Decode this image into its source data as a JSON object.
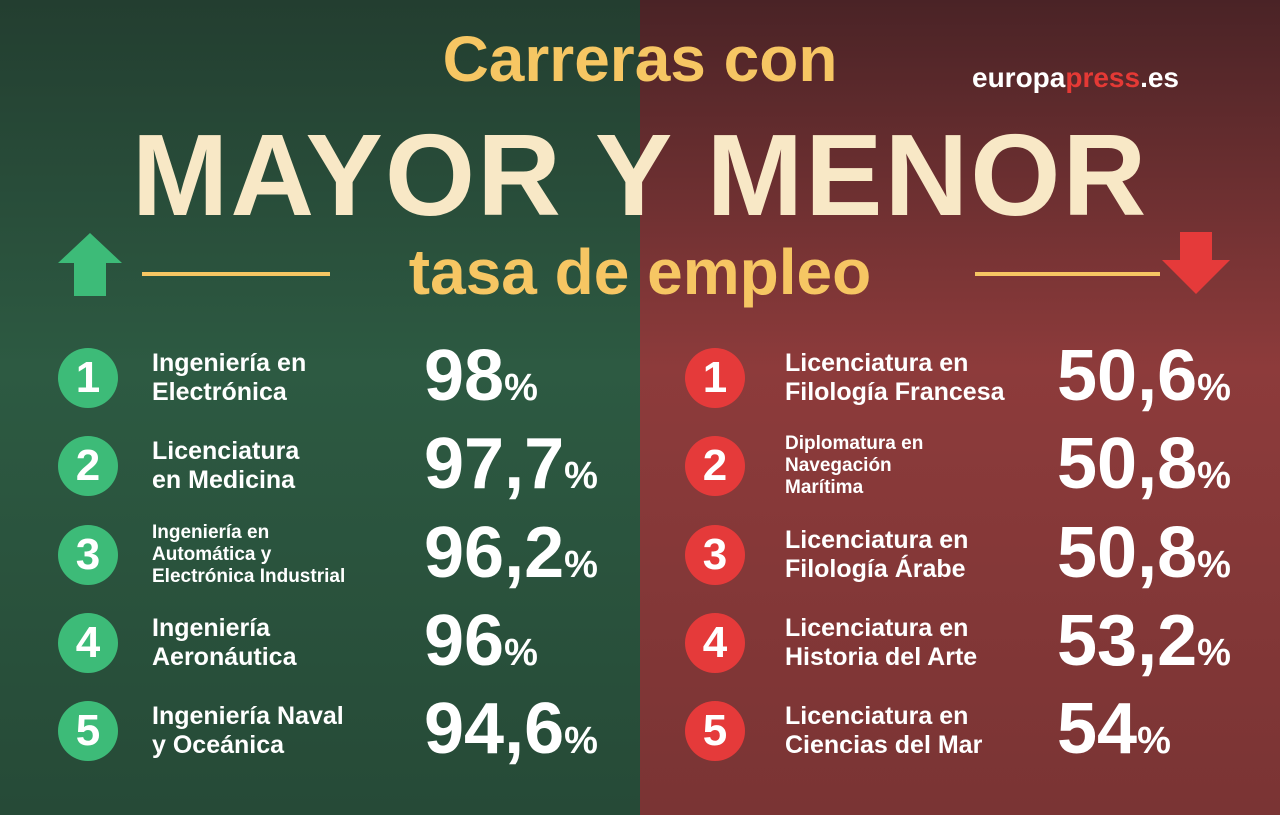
{
  "header": {
    "line1": "Carreras con",
    "line2": "MAYOR Y MENOR",
    "line3": "tasa de empleo",
    "brand": {
      "part1": "europa",
      "part2": "press",
      "part3": ".es"
    }
  },
  "left": {
    "items": [
      {
        "rank": 1,
        "name_lines": [
          "Ingeniería en",
          "Electrónica"
        ],
        "value": "98",
        "unit": "%"
      },
      {
        "rank": 2,
        "name_lines": [
          "Licenciatura",
          "en Medicina"
        ],
        "value": "97,7",
        "unit": "%"
      },
      {
        "rank": 3,
        "name_lines": [
          "Ingeniería en",
          "Automática y",
          "Electrónica Industrial"
        ],
        "value": "96,2",
        "unit": "%"
      },
      {
        "rank": 4,
        "name_lines": [
          "Ingeniería",
          "Aeronáutica"
        ],
        "value": "96",
        "unit": "%"
      },
      {
        "rank": 5,
        "name_lines": [
          "Ingeniería Naval",
          "y Oceánica"
        ],
        "value": "94,6",
        "unit": "%"
      }
    ]
  },
  "right": {
    "items": [
      {
        "rank": 1,
        "name_lines": [
          "Licenciatura en",
          "Filología Francesa"
        ],
        "value": "50,6",
        "unit": "%"
      },
      {
        "rank": 2,
        "name_lines": [
          "Diplomatura en",
          "Navegación",
          "Marítima"
        ],
        "value": "50,8",
        "unit": "%"
      },
      {
        "rank": 3,
        "name_lines": [
          "Licenciatura en",
          "Filología Árabe"
        ],
        "value": "50,8",
        "unit": "%"
      },
      {
        "rank": 4,
        "name_lines": [
          "Licenciatura en",
          "Historia del Arte"
        ],
        "value": "53,2",
        "unit": "%"
      },
      {
        "rank": 5,
        "name_lines": [
          "Licenciatura en",
          "Ciencias del Mar"
        ],
        "value": "54",
        "unit": "%"
      }
    ]
  }
}
